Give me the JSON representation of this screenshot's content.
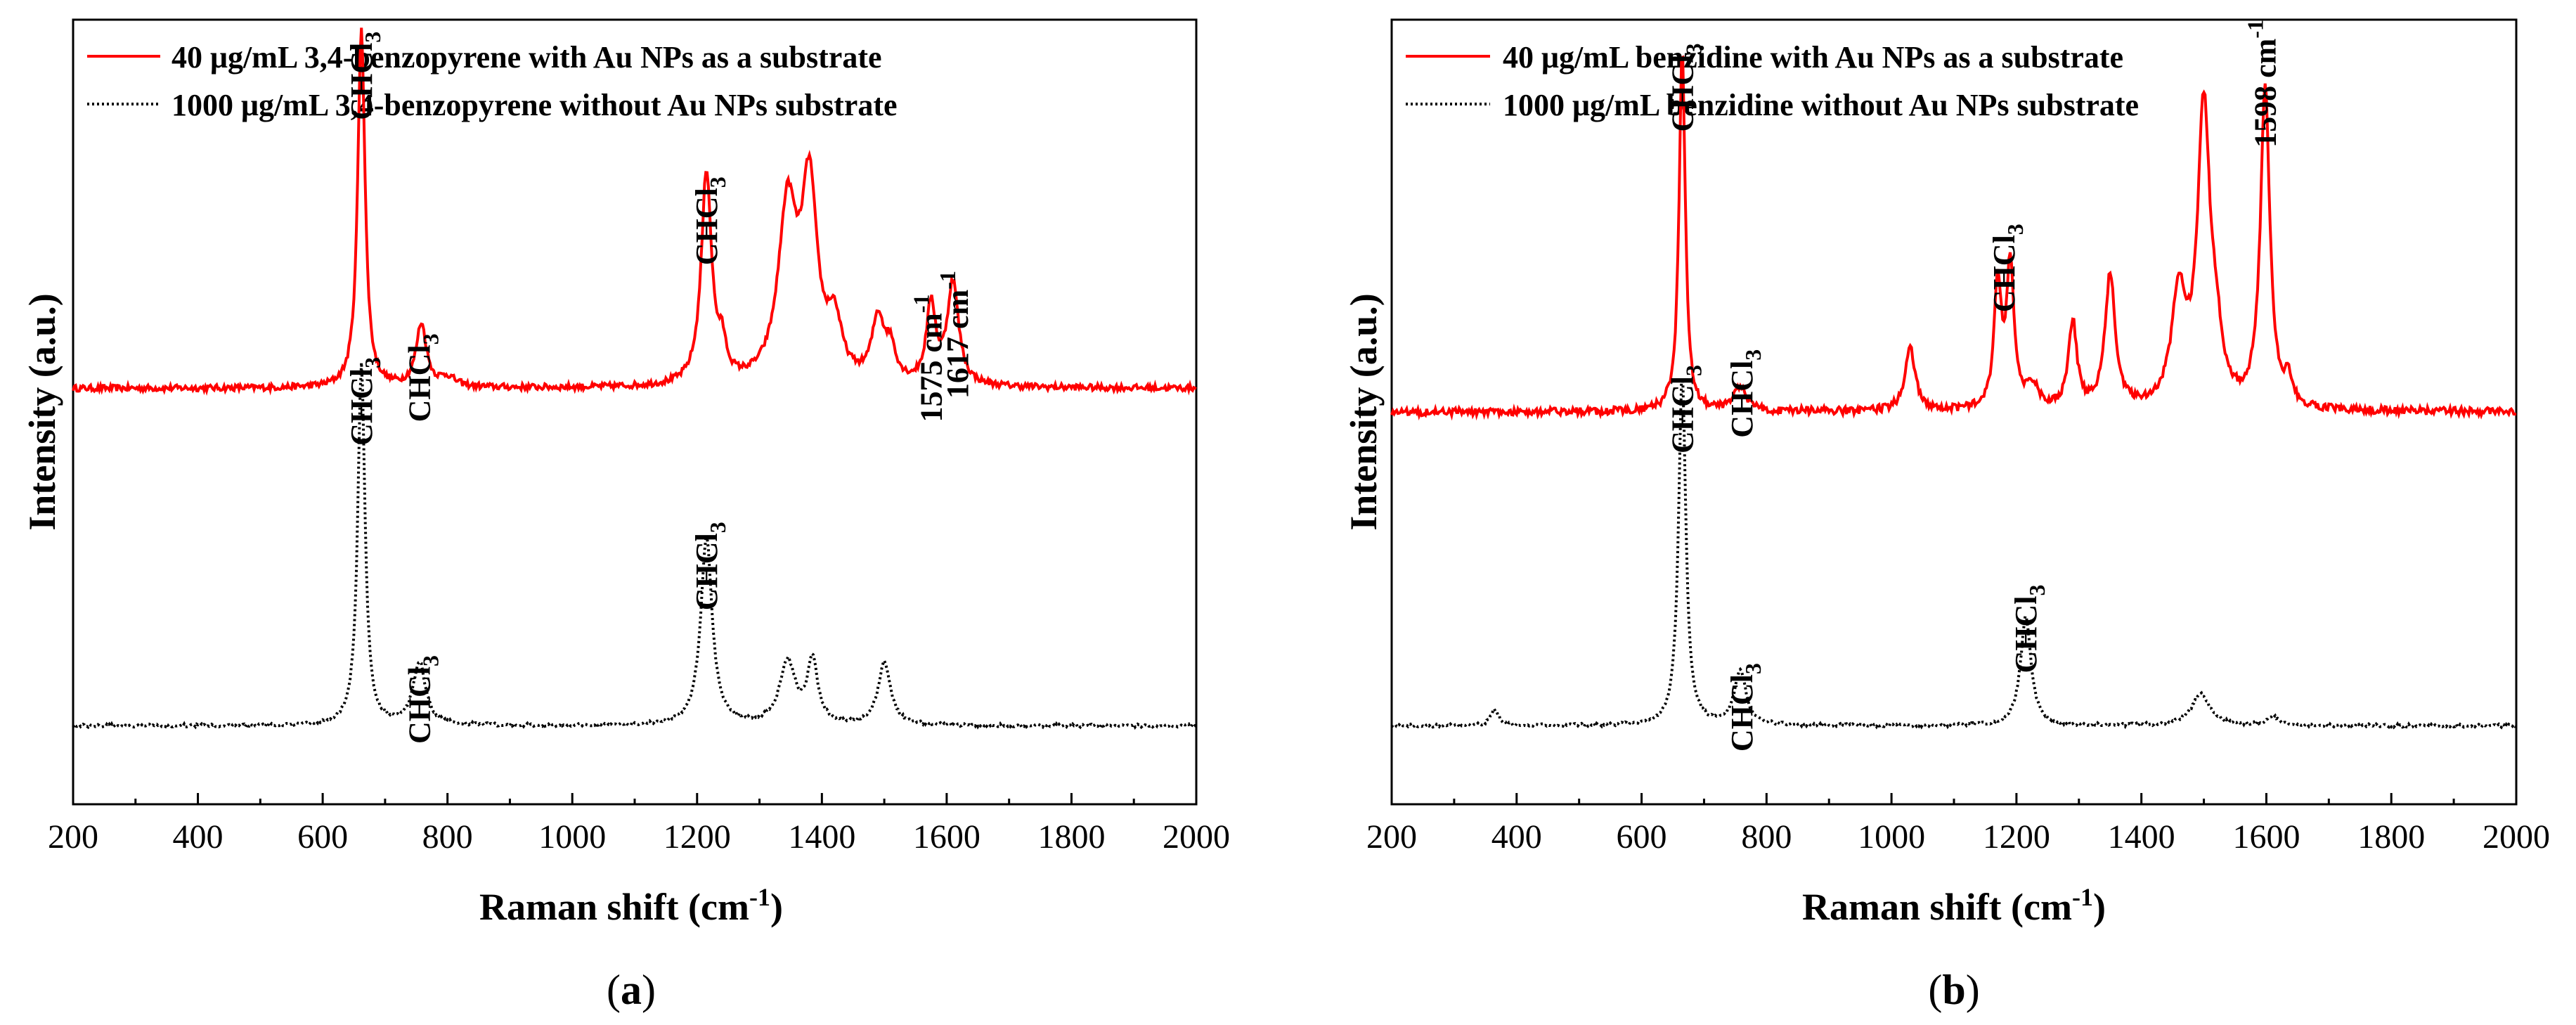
{
  "chart_data": [
    {
      "panel": "a",
      "caption_open": "(",
      "caption_letter": "a",
      "caption_close": ")",
      "type": "line",
      "xlabel": "Raman shift (cm",
      "xlabel_sup": "-1",
      "xlabel_end": ")",
      "ylabel": "Intensity (a.u.)",
      "xlim": [
        200,
        2000
      ],
      "ylim": [
        0,
        1
      ],
      "xticks": [
        "200",
        "400",
        "600",
        "800",
        "1000",
        "1200",
        "1400",
        "1600",
        "1800",
        "2000"
      ],
      "series": [
        {
          "name": "40 μg/mL 3,4-benzopyrene with Au NPs as a substrate",
          "color": "#ff0000",
          "style": "solid",
          "baseline": 0.53,
          "noise": 0.004,
          "peaks": [
            [
              662,
              0.46,
              7
            ],
            [
              758,
              0.08,
              10
            ],
            [
              800,
              0.012,
              15
            ],
            [
              1215,
              0.27,
              10
            ],
            [
              1240,
              0.04,
              8
            ],
            [
              1345,
              0.22,
              18
            ],
            [
              1380,
              0.24,
              15
            ],
            [
              1420,
              0.07,
              14
            ],
            [
              1490,
              0.08,
              12
            ],
            [
              1510,
              0.04,
              10
            ],
            [
              1575,
              0.1,
              9
            ],
            [
              1610,
              0.13,
              11
            ]
          ]
        },
        {
          "name": "1000 μg/mL 3,4-benzopyrene without Au NPs substrate",
          "color": "#000000",
          "style": "dotted",
          "baseline": 0.1,
          "noise": 0.002,
          "peaks": [
            [
              662,
              0.46,
              7
            ],
            [
              755,
              0.08,
              12
            ],
            [
              1215,
              0.24,
              11
            ],
            [
              1345,
              0.08,
              15
            ],
            [
              1385,
              0.08,
              10
            ],
            [
              1500,
              0.08,
              12
            ]
          ]
        }
      ],
      "annotations": [
        {
          "text": "CHCl",
          "sub": "3",
          "x": 662,
          "y": 0.985
        },
        {
          "text": "CHCl",
          "sub": "3",
          "x": 755,
          "y": 0.6
        },
        {
          "text": "CHCl",
          "sub": "3",
          "x": 1215,
          "y": 0.8
        },
        {
          "text": "1575 cm",
          "sup": "-1",
          "x": 1575,
          "y": 0.65
        },
        {
          "text": "1617 cm",
          "sup": "-1",
          "x": 1617,
          "y": 0.68
        },
        {
          "text": "CHCl",
          "sub": "3",
          "x": 662,
          "y": 0.57
        },
        {
          "text": "CHCl",
          "sub": "3",
          "x": 755,
          "y": 0.19
        },
        {
          "text": "CHCl",
          "sub": "3",
          "x": 1215,
          "y": 0.36
        }
      ]
    },
    {
      "panel": "b",
      "caption_open": "(",
      "caption_letter": "b",
      "caption_close": ")",
      "type": "line",
      "xlabel": "Raman shift (cm",
      "xlabel_sup": "-1",
      "xlabel_end": ")",
      "ylabel": "Intensity (a.u.)",
      "xlim": [
        200,
        2000
      ],
      "ylim": [
        0,
        1
      ],
      "xticks": [
        "200",
        "400",
        "600",
        "800",
        "1000",
        "1200",
        "1400",
        "1600",
        "1800",
        "2000"
      ],
      "series": [
        {
          "name": "40 μg/mL benzidine with Au NPs as a substrate",
          "color": "#ff0000",
          "style": "solid",
          "baseline": 0.5,
          "noise": 0.005,
          "peaks": [
            [
              665,
              0.46,
              6
            ],
            [
              758,
              0.03,
              12
            ],
            [
              1030,
              0.08,
              10
            ],
            [
              1170,
              0.16,
              7
            ],
            [
              1190,
              0.18,
              7
            ],
            [
              1225,
              0.03,
              12
            ],
            [
              1290,
              0.11,
              8
            ],
            [
              1350,
              0.17,
              10
            ],
            [
              1460,
              0.14,
              14
            ],
            [
              1500,
              0.38,
              12
            ],
            [
              1520,
              0.06,
              10
            ],
            [
              1598,
              0.41,
              9
            ],
            [
              1635,
              0.03,
              8
            ]
          ]
        },
        {
          "name": "1000 μg/mL benzidine without Au NPs substrate",
          "color": "#000000",
          "style": "dotted",
          "baseline": 0.1,
          "noise": 0.002,
          "peaks": [
            [
              365,
              0.02,
              8
            ],
            [
              665,
              0.45,
              7
            ],
            [
              758,
              0.07,
              11
            ],
            [
              1215,
              0.14,
              10
            ],
            [
              1495,
              0.04,
              18
            ],
            [
              1610,
              0.012,
              10
            ]
          ]
        }
      ],
      "annotations": [
        {
          "text": "CHCl",
          "sub": "3",
          "x": 665,
          "y": 0.97
        },
        {
          "text": "CHCl",
          "sub": "3",
          "x": 760,
          "y": 0.58
        },
        {
          "text": "CHCl",
          "sub": "3",
          "x": 1180,
          "y": 0.74
        },
        {
          "text": "1598 cm",
          "sup": "-1",
          "x": 1598,
          "y": 1.0
        },
        {
          "text": "CHCl",
          "sub": "3",
          "x": 665,
          "y": 0.56
        },
        {
          "text": "CHCl",
          "sub": "3",
          "x": 760,
          "y": 0.18
        },
        {
          "text": "CHCl",
          "sub": "3",
          "x": 1215,
          "y": 0.28
        }
      ]
    }
  ]
}
